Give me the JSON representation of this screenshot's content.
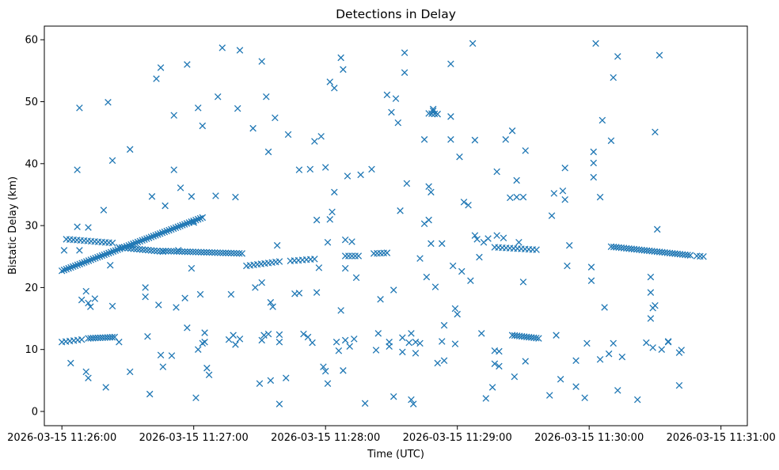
{
  "chart_data": {
    "type": "scatter",
    "title": "Detections in Delay",
    "xlabel": "Time (UTC)",
    "ylabel": "Bistatic Delay (km)",
    "marker": "x",
    "color": "#1f77b4",
    "grid": false,
    "xlim_seconds": [
      -8,
      312
    ],
    "ylim": [
      -2.3,
      62.2
    ],
    "x_unit": "seconds since 2026-03-15 11:26:00",
    "x_ticks": [
      {
        "t": 0,
        "label": "2026-03-15 11:26:00"
      },
      {
        "t": 60,
        "label": "2026-03-15 11:27:00"
      },
      {
        "t": 120,
        "label": "2026-03-15 11:28:00"
      },
      {
        "t": 180,
        "label": "2026-03-15 11:29:00"
      },
      {
        "t": 240,
        "label": "2026-03-15 11:30:00"
      },
      {
        "t": 300,
        "label": "2026-03-15 11:31:00"
      }
    ],
    "y_ticks": [
      0,
      10,
      20,
      30,
      40,
      50,
      60
    ],
    "tracks": [
      {
        "name": "rising track",
        "t_start": 0,
        "t_end": 64,
        "y_start": 22.7,
        "y_end": 31.3,
        "count": 64
      },
      {
        "name": "flat track ~26-27 km (early)",
        "t_start": 2,
        "t_end": 23,
        "y_start": 27.8,
        "y_end": 27.2,
        "count": 14
      },
      {
        "name": "flat track ~26 km",
        "t_start": 26,
        "t_end": 46,
        "y_start": 26.5,
        "y_end": 25.8,
        "count": 16
      },
      {
        "name": "flat track ~25.8 km",
        "t_start": 46,
        "t_end": 82,
        "y_start": 25.9,
        "y_end": 25.5,
        "count": 30
      },
      {
        "name": "flat track ~23.5 km",
        "t_start": 84,
        "t_end": 99,
        "y_start": 23.5,
        "y_end": 24.2,
        "count": 10
      },
      {
        "name": "flat track ~24 km",
        "t_start": 104,
        "t_end": 115,
        "y_start": 24.3,
        "y_end": 24.6,
        "count": 7
      },
      {
        "name": "flat track ~25 km",
        "t_start": 129,
        "t_end": 135,
        "y_start": 25.1,
        "y_end": 25.1,
        "count": 5
      },
      {
        "name": "flat track ~25.5 km",
        "t_start": 142,
        "t_end": 148,
        "y_start": 25.5,
        "y_end": 25.6,
        "count": 5
      },
      {
        "name": "flat track ~48 km",
        "t_start": 167,
        "t_end": 171,
        "y_start": 48.1,
        "y_end": 48.0,
        "count": 4
      },
      {
        "name": "flat track ~26.5 km",
        "t_start": 197,
        "t_end": 216,
        "y_start": 26.5,
        "y_end": 26.1,
        "count": 12
      },
      {
        "name": "descending track ~26-25 km",
        "t_start": 250,
        "t_end": 286,
        "y_start": 26.6,
        "y_end": 25.2,
        "count": 32
      },
      {
        "name": "flat track ~25 km (late)",
        "t_start": 289,
        "t_end": 292,
        "y_start": 25.1,
        "y_end": 25.0,
        "count": 3
      },
      {
        "name": "flat track ~11.5 km (early)",
        "t_start": 0,
        "t_end": 9,
        "y_start": 11.2,
        "y_end": 11.6,
        "count": 6
      },
      {
        "name": "flat track ~12 km",
        "t_start": 12,
        "t_end": 24,
        "y_start": 11.8,
        "y_end": 12.0,
        "count": 12
      },
      {
        "name": "flat track ~12 km (mid)",
        "t_start": 205,
        "t_end": 217,
        "y_start": 12.3,
        "y_end": 11.8,
        "count": 12
      }
    ],
    "points": [
      [
        1,
        26
      ],
      [
        4,
        7.8
      ],
      [
        7,
        39
      ],
      [
        8,
        49
      ],
      [
        7,
        29.8
      ],
      [
        8,
        26
      ],
      [
        9,
        18
      ],
      [
        11,
        19.4
      ],
      [
        11,
        6.4
      ],
      [
        12,
        5.4
      ],
      [
        12,
        29.7
      ],
      [
        12,
        17.5
      ],
      [
        13,
        16.9
      ],
      [
        15,
        18.2
      ],
      [
        19,
        32.5
      ],
      [
        20,
        3.9
      ],
      [
        21,
        49.9
      ],
      [
        22,
        23.6
      ],
      [
        23,
        40.5
      ],
      [
        23,
        17
      ],
      [
        26,
        11.2
      ],
      [
        31,
        42.3
      ],
      [
        31,
        6.4
      ],
      [
        38,
        20
      ],
      [
        38,
        18.5
      ],
      [
        39,
        12.1
      ],
      [
        40,
        2.8
      ],
      [
        41,
        34.7
      ],
      [
        43,
        53.7
      ],
      [
        44,
        17.2
      ],
      [
        45,
        55.5
      ],
      [
        45,
        9.1
      ],
      [
        46,
        7.2
      ],
      [
        47,
        33.2
      ],
      [
        50,
        9
      ],
      [
        51,
        39
      ],
      [
        51,
        47.8
      ],
      [
        52,
        16.8
      ],
      [
        53,
        26
      ],
      [
        54,
        36.1
      ],
      [
        56,
        18.3
      ],
      [
        57,
        13.5
      ],
      [
        57,
        56
      ],
      [
        59,
        23.1
      ],
      [
        59,
        34.7
      ],
      [
        60,
        30.5
      ],
      [
        61,
        2.2
      ],
      [
        62,
        49
      ],
      [
        62,
        10
      ],
      [
        63,
        18.9
      ],
      [
        64,
        46.1
      ],
      [
        64,
        11
      ],
      [
        65,
        11.2
      ],
      [
        65,
        12.7
      ],
      [
        66,
        7
      ],
      [
        67,
        5.9
      ],
      [
        70,
        34.8
      ],
      [
        71,
        50.8
      ],
      [
        73,
        58.7
      ],
      [
        76,
        11.6
      ],
      [
        77,
        18.9
      ],
      [
        78,
        12.3
      ],
      [
        79,
        10.8
      ],
      [
        79,
        34.6
      ],
      [
        80,
        48.9
      ],
      [
        81,
        58.3
      ],
      [
        81,
        11.7
      ],
      [
        87,
        45.7
      ],
      [
        88,
        20
      ],
      [
        90,
        4.5
      ],
      [
        91,
        56.5
      ],
      [
        91,
        11.5
      ],
      [
        91,
        20.8
      ],
      [
        92,
        12.3
      ],
      [
        93,
        50.8
      ],
      [
        94,
        41.9
      ],
      [
        94,
        12.5
      ],
      [
        95,
        17.6
      ],
      [
        95,
        5
      ],
      [
        96,
        16.9
      ],
      [
        97,
        47.4
      ],
      [
        98,
        26.8
      ],
      [
        99,
        1.2
      ],
      [
        99,
        12.4
      ],
      [
        99,
        11.2
      ],
      [
        102,
        5.4
      ],
      [
        103,
        44.7
      ],
      [
        106,
        19
      ],
      [
        108,
        39
      ],
      [
        108,
        19.1
      ],
      [
        110,
        12.5
      ],
      [
        112,
        12
      ],
      [
        113,
        39.1
      ],
      [
        114,
        11.1
      ],
      [
        115,
        43.6
      ],
      [
        116,
        30.9
      ],
      [
        116,
        19.2
      ],
      [
        117,
        23.2
      ],
      [
        118,
        44.4
      ],
      [
        119,
        7.2
      ],
      [
        120,
        39.4
      ],
      [
        120,
        6.5
      ],
      [
        121,
        4.5
      ],
      [
        121,
        27.3
      ],
      [
        122,
        53.2
      ],
      [
        122,
        31
      ],
      [
        123,
        32.2
      ],
      [
        124,
        52.2
      ],
      [
        124,
        35.4
      ],
      [
        125,
        11.2
      ],
      [
        126,
        9.8
      ],
      [
        127,
        57.1
      ],
      [
        127,
        16.3
      ],
      [
        128,
        55.2
      ],
      [
        128,
        6.6
      ],
      [
        129,
        11.5
      ],
      [
        129,
        23.1
      ],
      [
        129,
        27.7
      ],
      [
        130,
        38
      ],
      [
        131,
        10.5
      ],
      [
        132,
        27.4
      ],
      [
        133,
        11.7
      ],
      [
        134,
        21.6
      ],
      [
        136,
        38.2
      ],
      [
        138,
        1.3
      ],
      [
        141,
        39.1
      ],
      [
        143,
        9.9
      ],
      [
        144,
        12.6
      ],
      [
        145,
        18.1
      ],
      [
        148,
        51.1
      ],
      [
        149,
        10.5
      ],
      [
        149,
        11.2
      ],
      [
        150,
        48.3
      ],
      [
        151,
        19.6
      ],
      [
        151,
        2.4
      ],
      [
        152,
        50.5
      ],
      [
        153,
        46.6
      ],
      [
        154,
        32.4
      ],
      [
        155,
        9.6
      ],
      [
        155,
        11.9
      ],
      [
        156,
        57.9
      ],
      [
        156,
        54.7
      ],
      [
        157,
        36.8
      ],
      [
        158,
        11.1
      ],
      [
        159,
        12.6
      ],
      [
        159,
        1.9
      ],
      [
        160,
        1.2
      ],
      [
        161,
        11.2
      ],
      [
        161,
        9.4
      ],
      [
        163,
        11
      ],
      [
        163,
        24.7
      ],
      [
        165,
        43.9
      ],
      [
        165,
        30.3
      ],
      [
        166,
        21.7
      ],
      [
        167,
        36.3
      ],
      [
        167,
        30.9
      ],
      [
        168,
        27.1
      ],
      [
        168,
        35.4
      ],
      [
        169,
        48.8
      ],
      [
        169,
        48.5
      ],
      [
        170,
        20.1
      ],
      [
        171,
        7.8
      ],
      [
        173,
        11.3
      ],
      [
        173,
        27.1
      ],
      [
        174,
        13.9
      ],
      [
        174,
        8.2
      ],
      [
        177,
        56.1
      ],
      [
        177,
        43.9
      ],
      [
        177,
        47.6
      ],
      [
        178,
        23.5
      ],
      [
        179,
        10.9
      ],
      [
        179,
        16.6
      ],
      [
        180,
        15.7
      ],
      [
        181,
        41.1
      ],
      [
        182,
        22.6
      ],
      [
        183,
        33.8
      ],
      [
        185,
        33.3
      ],
      [
        186,
        21.1
      ],
      [
        187,
        59.4
      ],
      [
        188,
        43.8
      ],
      [
        188,
        28.4
      ],
      [
        189,
        27.8
      ],
      [
        190,
        24.9
      ],
      [
        191,
        12.6
      ],
      [
        192,
        27.3
      ],
      [
        193,
        2.1
      ],
      [
        194,
        27.9
      ],
      [
        196,
        3.9
      ],
      [
        197,
        7.7
      ],
      [
        197,
        9.8
      ],
      [
        198,
        38.7
      ],
      [
        198,
        28.4
      ],
      [
        199,
        7.3
      ],
      [
        199,
        9.7
      ],
      [
        201,
        28
      ],
      [
        202,
        43.9
      ],
      [
        204,
        34.5
      ],
      [
        205,
        45.3
      ],
      [
        206,
        5.6
      ],
      [
        207,
        37.3
      ],
      [
        207,
        34.6
      ],
      [
        208,
        27.3
      ],
      [
        210,
        34.6
      ],
      [
        210,
        20.9
      ],
      [
        211,
        8.1
      ],
      [
        211,
        42.1
      ],
      [
        222,
        2.6
      ],
      [
        223,
        31.6
      ],
      [
        224,
        35.2
      ],
      [
        225,
        12.3
      ],
      [
        227,
        5.2
      ],
      [
        228,
        35.6
      ],
      [
        229,
        39.3
      ],
      [
        229,
        34.2
      ],
      [
        230,
        23.5
      ],
      [
        231,
        26.8
      ],
      [
        234,
        8.2
      ],
      [
        234,
        4
      ],
      [
        238,
        2.2
      ],
      [
        239,
        11
      ],
      [
        241,
        23.3
      ],
      [
        241,
        21.1
      ],
      [
        242,
        41.9
      ],
      [
        242,
        40.1
      ],
      [
        242,
        37.8
      ],
      [
        243,
        59.4
      ],
      [
        245,
        34.6
      ],
      [
        245,
        8.4
      ],
      [
        246,
        47
      ],
      [
        247,
        16.8
      ],
      [
        249,
        9.3
      ],
      [
        250,
        43.7
      ],
      [
        251,
        53.9
      ],
      [
        251,
        11
      ],
      [
        253,
        57.3
      ],
      [
        253,
        3.4
      ],
      [
        255,
        8.8
      ],
      [
        262,
        1.9
      ],
      [
        266,
        11.1
      ],
      [
        268,
        21.7
      ],
      [
        268,
        19.2
      ],
      [
        268,
        15
      ],
      [
        269,
        16.7
      ],
      [
        269,
        10.3
      ],
      [
        270,
        17.1
      ],
      [
        270,
        45.1
      ],
      [
        271,
        29.4
      ],
      [
        272,
        57.5
      ],
      [
        273,
        10
      ],
      [
        276,
        11.2
      ],
      [
        276,
        11.3
      ],
      [
        281,
        9.5
      ],
      [
        281,
        4.2
      ],
      [
        282,
        9.9
      ]
    ]
  }
}
